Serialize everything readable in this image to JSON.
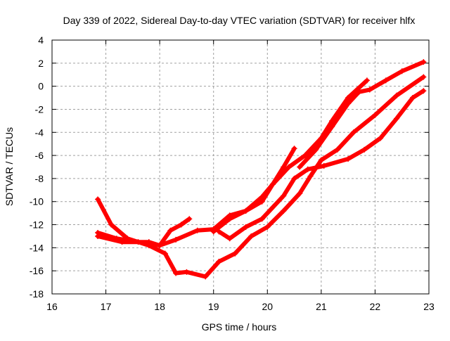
{
  "chart_data": {
    "type": "line",
    "title": "Day 339 of 2022, Sidereal Day-to-day VTEC variation (SDTVAR) for receiver hlfx",
    "xlabel": "GPS time / hours",
    "ylabel": "SDTVAR / TECUs",
    "xlim": [
      16,
      23
    ],
    "ylim": [
      -18,
      4
    ],
    "xticks": [
      16,
      17,
      18,
      19,
      20,
      21,
      22,
      23
    ],
    "yticks": [
      4,
      2,
      0,
      -2,
      -4,
      -6,
      -8,
      -10,
      -12,
      -14,
      -16,
      -18
    ],
    "grid": true,
    "color": "#ff0000",
    "series": [
      {
        "name": "trace-1",
        "points": [
          [
            16.85,
            -12.7
          ],
          [
            17.2,
            -13.2
          ],
          [
            17.6,
            -13.5
          ],
          [
            18.0,
            -13.8
          ],
          [
            18.3,
            -13.3
          ],
          [
            18.7,
            -12.5
          ],
          [
            19.0,
            -12.4
          ],
          [
            19.3,
            -11.2
          ],
          [
            19.6,
            -10.8
          ],
          [
            19.9,
            -9.6
          ],
          [
            20.1,
            -8.5
          ],
          [
            20.4,
            -7.0
          ],
          [
            20.7,
            -6.0
          ],
          [
            21.0,
            -4.5
          ],
          [
            21.2,
            -3.0
          ],
          [
            21.5,
            -1.0
          ],
          [
            21.85,
            0.5
          ]
        ]
      },
      {
        "name": "trace-2",
        "points": [
          [
            16.85,
            -13.0
          ],
          [
            17.3,
            -13.5
          ],
          [
            17.8,
            -13.5
          ],
          [
            18.0,
            -13.8
          ],
          [
            18.2,
            -12.5
          ],
          [
            18.4,
            -12.0
          ],
          [
            18.55,
            -11.5
          ]
        ]
      },
      {
        "name": "trace-3",
        "points": [
          [
            16.85,
            -9.8
          ],
          [
            17.1,
            -12.0
          ],
          [
            17.4,
            -13.2
          ],
          [
            17.8,
            -13.8
          ],
          [
            18.1,
            -14.5
          ],
          [
            18.3,
            -16.2
          ],
          [
            18.5,
            -16.1
          ],
          [
            18.85,
            -16.5
          ],
          [
            19.1,
            -15.2
          ],
          [
            19.4,
            -14.5
          ],
          [
            19.7,
            -13.0
          ],
          [
            20.0,
            -12.2
          ],
          [
            20.3,
            -10.8
          ],
          [
            20.6,
            -9.3
          ],
          [
            20.8,
            -7.8
          ],
          [
            21.0,
            -6.4
          ],
          [
            21.3,
            -5.5
          ],
          [
            21.6,
            -4.0
          ],
          [
            22.0,
            -2.5
          ],
          [
            22.4,
            -0.8
          ],
          [
            22.9,
            0.8
          ]
        ]
      },
      {
        "name": "trace-4",
        "points": [
          [
            19.1,
            -12.6
          ],
          [
            19.3,
            -13.2
          ],
          [
            19.6,
            -12.2
          ],
          [
            19.9,
            -11.5
          ],
          [
            20.3,
            -9.5
          ],
          [
            20.5,
            -8.0
          ],
          [
            20.75,
            -7.2
          ],
          [
            21.05,
            -6.9
          ],
          [
            21.5,
            -6.3
          ],
          [
            21.8,
            -5.5
          ],
          [
            22.1,
            -4.5
          ],
          [
            22.4,
            -2.8
          ],
          [
            22.7,
            -1.0
          ],
          [
            22.9,
            -0.4
          ]
        ]
      },
      {
        "name": "trace-5",
        "points": [
          [
            19.0,
            -12.6
          ],
          [
            19.3,
            -11.5
          ],
          [
            19.6,
            -10.8
          ],
          [
            19.9,
            -10.0
          ],
          [
            20.1,
            -8.5
          ],
          [
            20.3,
            -7.0
          ],
          [
            20.5,
            -5.4
          ]
        ]
      },
      {
        "name": "trace-6",
        "points": [
          [
            20.6,
            -7.0
          ],
          [
            20.9,
            -5.5
          ],
          [
            21.2,
            -3.5
          ],
          [
            21.5,
            -1.5
          ],
          [
            21.7,
            -0.5
          ],
          [
            21.9,
            -0.3
          ],
          [
            22.2,
            0.5
          ],
          [
            22.5,
            1.3
          ],
          [
            22.9,
            2.1
          ]
        ]
      }
    ]
  }
}
